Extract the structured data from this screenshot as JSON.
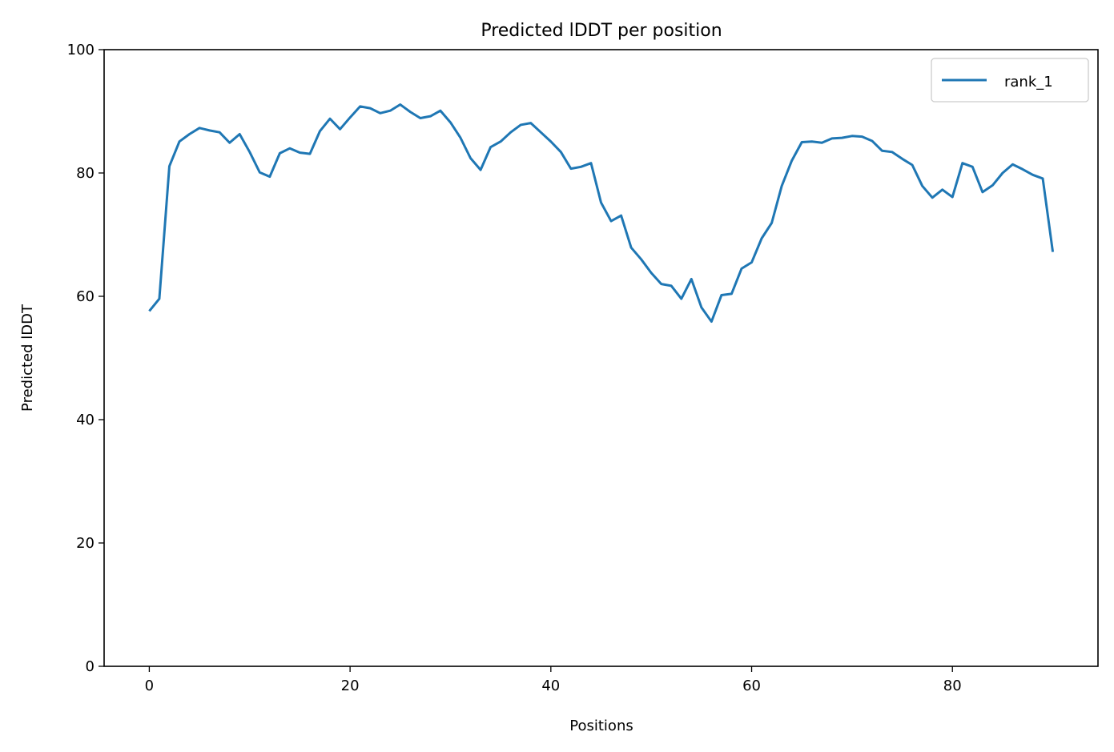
{
  "chart_data": {
    "type": "line",
    "title": "Predicted lDDT per position",
    "xlabel": "Positions",
    "ylabel": "Predicted lDDT",
    "xlim": [
      -4.5,
      94.5
    ],
    "ylim": [
      0,
      100
    ],
    "x_ticks": [
      0,
      20,
      40,
      60,
      80
    ],
    "y_ticks": [
      0,
      20,
      40,
      60,
      80,
      100
    ],
    "grid": false,
    "legend_position": "top-right",
    "series": [
      {
        "name": "rank_1",
        "color": "#1f77b4",
        "x": [
          0,
          1,
          2,
          3,
          4,
          5,
          6,
          7,
          8,
          9,
          10,
          11,
          12,
          13,
          14,
          15,
          16,
          17,
          18,
          19,
          20,
          21,
          22,
          23,
          24,
          25,
          26,
          27,
          28,
          29,
          30,
          31,
          32,
          33,
          34,
          35,
          36,
          37,
          38,
          39,
          40,
          41,
          42,
          43,
          44,
          45,
          46,
          47,
          48,
          49,
          50,
          51,
          52,
          53,
          54,
          55,
          56,
          57,
          58,
          59,
          60,
          61,
          62,
          63,
          64,
          65,
          66,
          67,
          68,
          69,
          70,
          71,
          72,
          73,
          74,
          75,
          76,
          77,
          78,
          79,
          80,
          81,
          82,
          83,
          84,
          85,
          86,
          87,
          88,
          89,
          90
        ],
        "values": [
          57.6,
          59.6,
          81.1,
          85.1,
          86.3,
          87.3,
          86.9,
          86.6,
          84.9,
          86.3,
          83.4,
          80.1,
          79.4,
          83.2,
          84.0,
          83.3,
          83.1,
          86.8,
          88.8,
          87.1,
          89.0,
          90.8,
          90.5,
          89.7,
          90.1,
          91.1,
          89.9,
          88.9,
          89.2,
          90.1,
          88.2,
          85.7,
          82.4,
          80.5,
          84.2,
          85.1,
          86.6,
          87.8,
          88.1,
          86.6,
          85.1,
          83.4,
          80.7,
          81.0,
          81.6,
          75.2,
          72.2,
          73.1,
          67.9,
          66.0,
          63.8,
          62.0,
          61.7,
          59.6,
          62.8,
          58.2,
          55.9,
          60.2,
          60.4,
          64.5,
          65.5,
          69.4,
          71.9,
          77.9,
          82.0,
          85.0,
          85.1,
          84.9,
          85.6,
          85.7,
          86.0,
          85.9,
          85.2,
          83.6,
          83.4,
          82.3,
          81.3,
          77.9,
          76.0,
          77.3,
          76.1,
          81.6,
          81.0,
          76.9,
          78.0,
          80.0,
          81.4,
          80.6,
          79.7,
          79.1,
          67.2
        ]
      }
    ]
  }
}
